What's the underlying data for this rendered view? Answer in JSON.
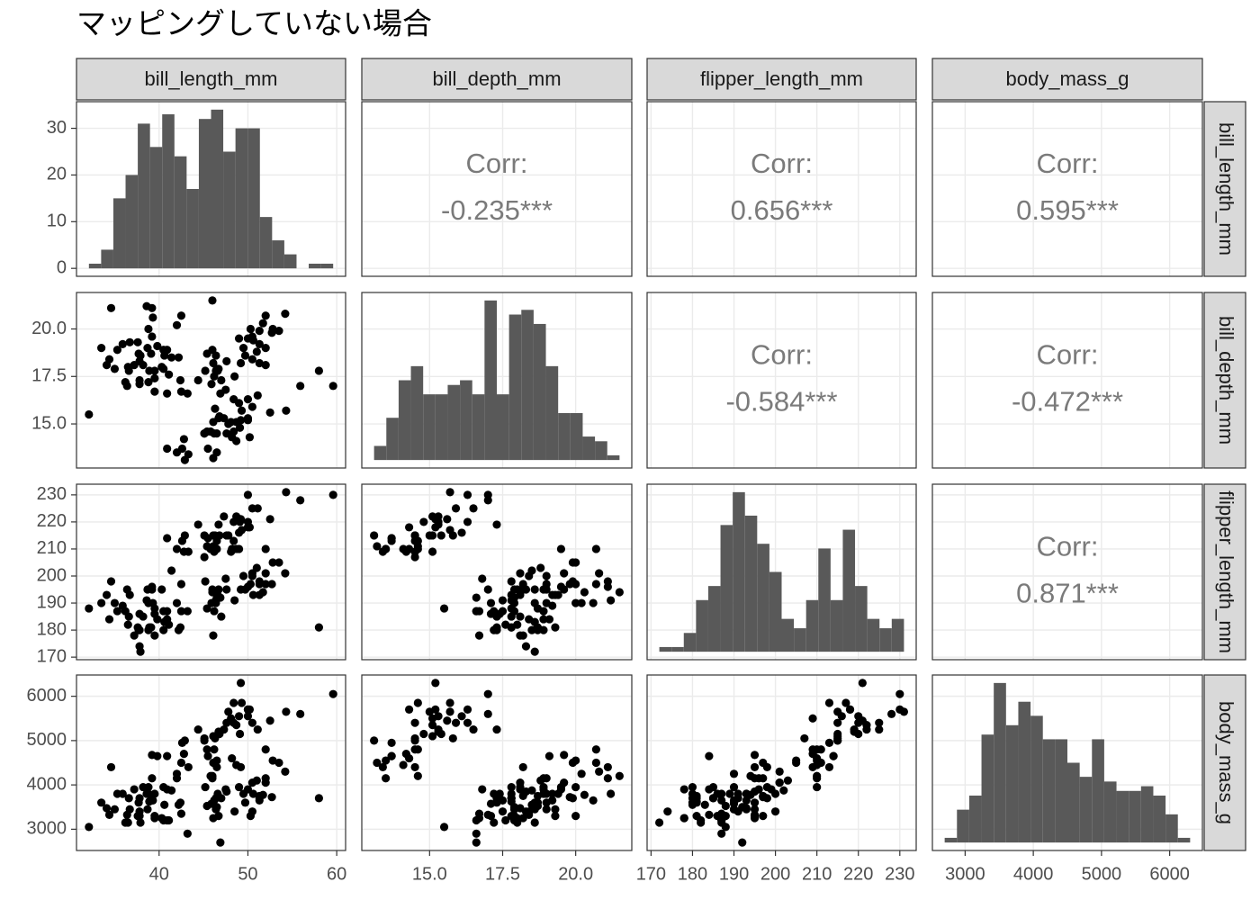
{
  "chart_data": {
    "type": "pairs",
    "title": "マッピングしていない場合",
    "corr_label": "Corr:",
    "count_lim": [
      -1.7,
      35.7
    ],
    "count_ticks": [
      0,
      10,
      20,
      30
    ],
    "grid": true,
    "point_color": "#000000",
    "bar_color": "#595959",
    "variables": [
      {
        "name": "bill_length_mm",
        "lim": [
          30.7,
          61.0
        ],
        "ticks": [
          40,
          50,
          60
        ],
        "bins": [
          32.1,
          33.475,
          34.85,
          36.225,
          37.6,
          38.975,
          40.35,
          41.725,
          43.1,
          44.475,
          45.85,
          47.225,
          48.6,
          49.975,
          51.35,
          52.725,
          54.1,
          55.475,
          56.85,
          58.225,
          59.6
        ],
        "counts": [
          1,
          4,
          15,
          20,
          31,
          26,
          33,
          24,
          17,
          32,
          34,
          25,
          30,
          30,
          11,
          6,
          3,
          0,
          1,
          1
        ]
      },
      {
        "name": "bill_depth_mm",
        "lim": [
          12.68,
          21.92
        ],
        "ticks": [
          {
            "value": 15,
            "label": "15.0"
          },
          17.5,
          {
            "value": 20,
            "label": "20.0"
          }
        ],
        "bins": [
          13.1,
          13.52,
          13.94,
          14.36,
          14.78,
          15.2,
          15.62,
          16.04,
          16.46,
          16.88,
          17.3,
          17.72,
          18.14,
          18.56,
          18.98,
          19.4,
          19.82,
          20.24,
          20.66,
          21.08,
          21.5
        ],
        "counts": [
          3,
          9,
          17,
          20,
          14,
          14,
          16,
          17,
          14,
          34,
          14,
          31,
          32,
          29,
          20,
          10,
          10,
          5,
          4,
          1
        ]
      },
      {
        "name": "flipper_length_mm",
        "lim": [
          169.05,
          233.95
        ],
        "ticks": [
          170,
          180,
          190,
          200,
          210,
          220,
          230
        ],
        "bins": [
          172,
          174.95,
          177.9,
          180.85,
          183.8,
          186.75,
          189.7,
          192.65,
          195.6,
          198.55,
          201.5,
          204.45,
          207.4,
          210.35,
          213.3,
          216.25,
          219.2,
          222.15,
          225.1,
          228.05,
          231
        ],
        "counts": [
          1,
          1,
          4,
          11,
          14,
          27,
          34,
          29,
          23,
          17,
          7,
          5,
          11,
          22,
          11,
          26,
          14,
          7,
          5,
          7
        ]
      },
      {
        "name": "body_mass_g",
        "lim": [
          2520,
          6480
        ],
        "ticks": [
          3000,
          4000,
          5000,
          6000
        ],
        "bins": [
          2700,
          2880,
          3060,
          3240,
          3420,
          3600,
          3780,
          3960,
          4140,
          4320,
          4500,
          4680,
          4860,
          5040,
          5220,
          5400,
          5580,
          5760,
          5940,
          6120,
          6300
        ],
        "counts": [
          1,
          7,
          10,
          23,
          34,
          25,
          30,
          27,
          22,
          22,
          17,
          14,
          22,
          13,
          11,
          11,
          12,
          10,
          6,
          1
        ]
      }
    ],
    "correlations": {
      "values": [
        -0.235,
        0.656,
        0.595,
        -0.584,
        -0.472,
        0.871
      ],
      "value_labels": [
        "-0.235***",
        "0.656***",
        "0.595***",
        "-0.584***",
        "-0.472***",
        "0.871***"
      ]
    },
    "observations": [
      [
        39.1,
        18.7,
        181,
        3750
      ],
      [
        39.5,
        17.4,
        186,
        3800
      ],
      [
        40.3,
        18.0,
        195,
        3250
      ],
      [
        36.7,
        19.3,
        193,
        3450
      ],
      [
        39.3,
        20.6,
        190,
        3650
      ],
      [
        38.9,
        17.8,
        181,
        3625
      ],
      [
        39.2,
        19.6,
        195,
        4675
      ],
      [
        34.1,
        18.1,
        193,
        3475
      ],
      [
        42.0,
        20.2,
        190,
        4250
      ],
      [
        37.8,
        17.1,
        186,
        3300
      ],
      [
        37.8,
        17.3,
        180,
        3700
      ],
      [
        41.1,
        17.6,
        182,
        3200
      ],
      [
        38.6,
        21.2,
        191,
        3800
      ],
      [
        34.6,
        21.1,
        198,
        4400
      ],
      [
        36.6,
        17.8,
        185,
        3700
      ],
      [
        38.7,
        19.0,
        195,
        3450
      ],
      [
        42.5,
        20.7,
        197,
        4500
      ],
      [
        34.4,
        18.4,
        184,
        3325
      ],
      [
        46.0,
        21.5,
        194,
        4200
      ],
      [
        37.8,
        18.3,
        174,
        3400
      ],
      [
        37.7,
        18.7,
        180,
        3600
      ],
      [
        35.9,
        19.2,
        189,
        3800
      ],
      [
        38.2,
        18.1,
        185,
        3950
      ],
      [
        38.8,
        17.2,
        180,
        3800
      ],
      [
        35.3,
        18.9,
        187,
        3800
      ],
      [
        40.6,
        18.6,
        183,
        3550
      ],
      [
        40.5,
        17.9,
        187,
        3200
      ],
      [
        37.9,
        18.6,
        172,
        3150
      ],
      [
        40.5,
        18.9,
        180,
        3950
      ],
      [
        39.5,
        16.7,
        178,
        3250
      ],
      [
        37.2,
        18.1,
        178,
        3900
      ],
      [
        39.5,
        17.8,
        188,
        3300
      ],
      [
        40.9,
        18.9,
        184,
        3900
      ],
      [
        36.4,
        17.0,
        195,
        3325
      ],
      [
        39.2,
        21.1,
        196,
        4150
      ],
      [
        38.8,
        20.0,
        190,
        3950
      ],
      [
        42.2,
        18.5,
        180,
        3550
      ],
      [
        37.6,
        19.3,
        181,
        3300
      ],
      [
        39.8,
        19.1,
        184,
        4650
      ],
      [
        36.5,
        18.0,
        182,
        3150
      ],
      [
        32.1,
        15.5,
        188,
        3050
      ],
      [
        33.5,
        19.0,
        190,
        3600
      ],
      [
        35.0,
        17.9,
        190,
        3450
      ],
      [
        41.4,
        18.5,
        202,
        3875
      ],
      [
        36.2,
        17.2,
        187,
        3150
      ],
      [
        46.1,
        13.2,
        211,
        4500
      ],
      [
        50.0,
        16.3,
        230,
        5700
      ],
      [
        48.7,
        14.1,
        210,
        4450
      ],
      [
        50.0,
        15.2,
        218,
        5700
      ],
      [
        47.6,
        14.5,
        215,
        5400
      ],
      [
        46.5,
        13.5,
        210,
        4550
      ],
      [
        45.4,
        14.6,
        211,
        4800
      ],
      [
        46.7,
        15.3,
        219,
        5200
      ],
      [
        43.3,
        13.4,
        209,
        4400
      ],
      [
        46.8,
        15.4,
        215,
        5150
      ],
      [
        40.9,
        13.7,
        214,
        4650
      ],
      [
        49.0,
        16.1,
        216,
        5550
      ],
      [
        45.5,
        13.7,
        214,
        4650
      ],
      [
        48.4,
        14.6,
        213,
        5850
      ],
      [
        45.8,
        14.6,
        210,
        4200
      ],
      [
        49.3,
        15.7,
        217,
        5850
      ],
      [
        42.0,
        13.5,
        210,
        4150
      ],
      [
        49.2,
        15.2,
        221,
        6300
      ],
      [
        46.2,
        14.5,
        209,
        4800
      ],
      [
        48.7,
        15.1,
        222,
        5350
      ],
      [
        50.2,
        14.3,
        218,
        5700
      ],
      [
        45.1,
        14.5,
        215,
        5000
      ],
      [
        46.5,
        14.5,
        213,
        4400
      ],
      [
        46.3,
        15.8,
        215,
        5050
      ],
      [
        42.9,
        13.1,
        215,
        5000
      ],
      [
        46.1,
        15.1,
        215,
        5100
      ],
      [
        47.8,
        15.0,
        215,
        5650
      ],
      [
        48.2,
        14.3,
        210,
        4600
      ],
      [
        50.0,
        15.3,
        220,
        5550
      ],
      [
        47.3,
        15.3,
        222,
        5250
      ],
      [
        42.8,
        14.2,
        209,
        4700
      ],
      [
        45.1,
        14.5,
        207,
        5050
      ],
      [
        59.6,
        17.0,
        230,
        6050
      ],
      [
        49.1,
        14.8,
        220,
        5150
      ],
      [
        48.4,
        16.3,
        220,
        5400
      ],
      [
        42.6,
        13.7,
        213,
        4950
      ],
      [
        44.4,
        17.3,
        219,
        5250
      ],
      [
        48.1,
        15.1,
        209,
        5500
      ],
      [
        50.5,
        15.9,
        225,
        5400
      ],
      [
        54.3,
        15.7,
        231,
        5650
      ],
      [
        55.9,
        17.0,
        228,
        5600
      ],
      [
        51.1,
        16.5,
        225,
        5250
      ],
      [
        52.5,
        15.6,
        221,
        5450
      ],
      [
        46.5,
        17.9,
        192,
        3500
      ],
      [
        50.0,
        19.5,
        196,
        3900
      ],
      [
        51.3,
        19.2,
        193,
        3650
      ],
      [
        45.4,
        18.7,
        188,
        3525
      ],
      [
        52.7,
        19.8,
        197,
        3725
      ],
      [
        45.2,
        17.8,
        198,
        3950
      ],
      [
        46.1,
        18.2,
        178,
        3250
      ],
      [
        51.3,
        18.2,
        197,
        3750
      ],
      [
        46.0,
        18.9,
        195,
        4150
      ],
      [
        51.3,
        19.9,
        198,
        3700
      ],
      [
        46.6,
        17.8,
        193,
        3800
      ],
      [
        51.7,
        20.3,
        194,
        3775
      ],
      [
        47.0,
        17.3,
        185,
        3700
      ],
      [
        52.0,
        18.1,
        201,
        4050
      ],
      [
        45.9,
        17.1,
        190,
        3575
      ],
      [
        50.5,
        19.6,
        201,
        4050
      ],
      [
        50.3,
        20.0,
        197,
        3300
      ],
      [
        58.0,
        17.8,
        181,
        3700
      ],
      [
        46.4,
        18.6,
        190,
        3450
      ],
      [
        49.2,
        18.2,
        195,
        4400
      ],
      [
        42.4,
        17.3,
        181,
        3600
      ],
      [
        48.5,
        17.5,
        191,
        3400
      ],
      [
        43.2,
        16.6,
        187,
        2900
      ],
      [
        50.6,
        19.4,
        193,
        3800
      ],
      [
        46.7,
        17.9,
        195,
        3300
      ],
      [
        52.0,
        19.0,
        197,
        4150
      ],
      [
        50.5,
        18.4,
        200,
        3400
      ],
      [
        49.5,
        19.0,
        200,
        3800
      ],
      [
        46.4,
        17.8,
        191,
        3700
      ],
      [
        52.8,
        20.0,
        205,
        4550
      ],
      [
        40.9,
        16.6,
        187,
        3200
      ],
      [
        54.2,
        20.8,
        201,
        4300
      ],
      [
        42.5,
        16.7,
        187,
        3350
      ],
      [
        51.0,
        18.8,
        203,
        4100
      ],
      [
        49.7,
        18.6,
        195,
        3600
      ],
      [
        47.5,
        16.8,
        199,
        3900
      ],
      [
        47.6,
        18.3,
        195,
        3850
      ],
      [
        52.0,
        20.7,
        210,
        4800
      ],
      [
        46.9,
        16.6,
        192,
        2700
      ],
      [
        53.5,
        19.9,
        205,
        4500
      ],
      [
        49.0,
        19.5,
        210,
        3950
      ],
      [
        46.2,
        17.5,
        187,
        3650
      ]
    ]
  }
}
